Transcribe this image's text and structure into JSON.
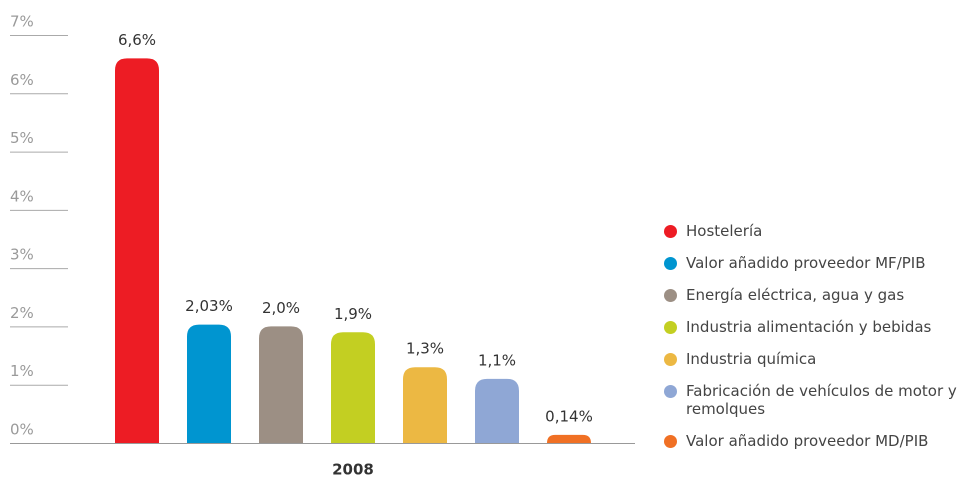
{
  "chart_data": {
    "type": "bar",
    "categories": [
      "2008"
    ],
    "series": [
      {
        "name": "Hostelería",
        "color": "#ed1c24",
        "values": [
          6.6
        ],
        "value_labels": [
          "6,6%"
        ]
      },
      {
        "name": "Valor añadido proveedor MF/PIB",
        "color": "#0095d0",
        "values": [
          2.03
        ],
        "value_labels": [
          "2,03%"
        ]
      },
      {
        "name": "Energía eléctrica, agua y gas",
        "color": "#9c8f84",
        "values": [
          2.0
        ],
        "value_labels": [
          "2,0%"
        ]
      },
      {
        "name": "Industria alimentación y bebidas",
        "color": "#c3cf22",
        "values": [
          1.9
        ],
        "value_labels": [
          "1,9%"
        ]
      },
      {
        "name": "Industria química",
        "color": "#ecb843",
        "values": [
          1.3
        ],
        "value_labels": [
          "1,3%"
        ]
      },
      {
        "name": "Fabricación de vehículos de motor y remolques",
        "color": "#8fa7d5",
        "values": [
          1.1
        ],
        "value_labels": [
          "1,1%"
        ]
      },
      {
        "name": "Valor añadido proveedor MD/PIB",
        "color": "#f07024",
        "values": [
          0.14
        ],
        "value_labels": [
          "0,14%"
        ]
      }
    ],
    "ylim": [
      0,
      7
    ],
    "yticks": [
      {
        "value": 0,
        "label": "0%"
      },
      {
        "value": 1,
        "label": "1%"
      },
      {
        "value": 2,
        "label": "2%"
      },
      {
        "value": 3,
        "label": "3%"
      },
      {
        "value": 4,
        "label": "4%"
      },
      {
        "value": 5,
        "label": "5%"
      },
      {
        "value": 6,
        "label": "6%"
      },
      {
        "value": 7,
        "label": "7%"
      }
    ],
    "legend": "right"
  }
}
